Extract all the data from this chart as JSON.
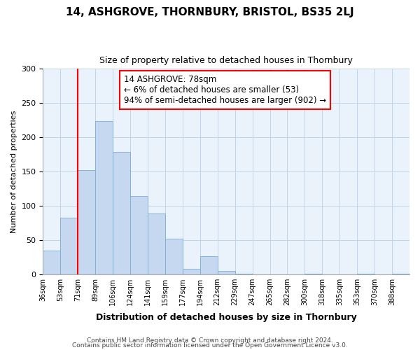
{
  "title": "14, ASHGROVE, THORNBURY, BRISTOL, BS35 2LJ",
  "subtitle": "Size of property relative to detached houses in Thornbury",
  "xlabel": "Distribution of detached houses by size in Thornbury",
  "ylabel": "Number of detached properties",
  "bin_labels": [
    "36sqm",
    "53sqm",
    "71sqm",
    "89sqm",
    "106sqm",
    "124sqm",
    "141sqm",
    "159sqm",
    "177sqm",
    "194sqm",
    "212sqm",
    "229sqm",
    "247sqm",
    "265sqm",
    "282sqm",
    "300sqm",
    "318sqm",
    "335sqm",
    "353sqm",
    "370sqm",
    "388sqm"
  ],
  "bar_values": [
    34,
    83,
    152,
    224,
    179,
    114,
    89,
    52,
    8,
    26,
    5,
    1,
    0,
    0,
    0,
    1,
    0,
    0,
    1,
    0,
    1
  ],
  "bar_color": "#c5d8f0",
  "bar_edge_color": "#7aadd4",
  "vline_x": 2,
  "vline_color": "red",
  "annotation_title": "14 ASHGROVE: 78sqm",
  "annotation_line1": "← 6% of detached houses are smaller (53)",
  "annotation_line2": "94% of semi-detached houses are larger (902) →",
  "annotation_box_color": "white",
  "annotation_box_edge": "red",
  "ylim": [
    0,
    300
  ],
  "yticks": [
    0,
    50,
    100,
    150,
    200,
    250,
    300
  ],
  "plot_bg": "#eaf2fb",
  "grid_color": "#c0d4e8",
  "footer1": "Contains HM Land Registry data © Crown copyright and database right 2024.",
  "footer2": "Contains public sector information licensed under the Open Government Licence v3.0."
}
